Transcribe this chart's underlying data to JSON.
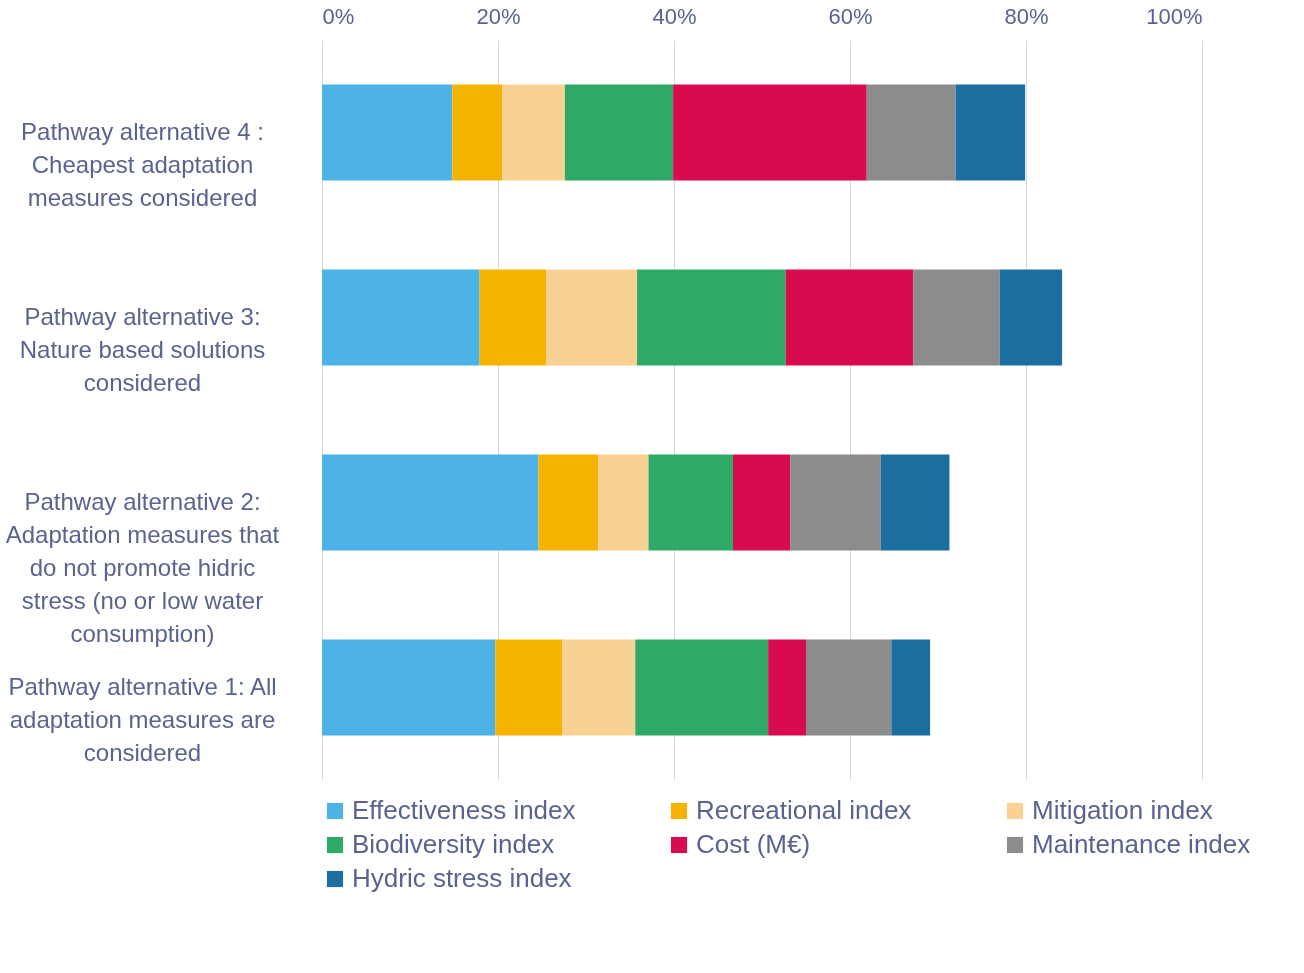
{
  "chart_data": {
    "type": "bar",
    "orientation": "horizontal",
    "stacked": true,
    "categories": [
      "Pathway alternative 4 : Cheapest adaptation measures considered",
      "Pathway alternative 3: Nature based solutions considered",
      "Pathway alternative 2: Adaptation measures that do not promote hidric stress (no or low water consumption)",
      "Pathway alternative 1: All adaptation measures are considered"
    ],
    "series": [
      {
        "name": "Effectiveness index",
        "color": "#4db3e6",
        "values": [
          14.8,
          17.9,
          24.6,
          19.7
        ]
      },
      {
        "name": "Recreational index",
        "color": "#f5b300",
        "values": [
          5.7,
          7.6,
          6.8,
          7.6
        ]
      },
      {
        "name": "Mitigation index",
        "color": "#f9d293",
        "values": [
          7.1,
          10.3,
          5.7,
          8.3
        ]
      },
      {
        "name": "Biodiversity index",
        "color": "#2eaa66",
        "values": [
          12.3,
          16.9,
          9.6,
          15.1
        ]
      },
      {
        "name": "Cost (M€)",
        "color": "#d90b4f",
        "values": [
          22.0,
          14.5,
          6.5,
          4.3
        ]
      },
      {
        "name": "Maintenance index",
        "color": "#8c8c8c",
        "values": [
          10.1,
          9.8,
          10.3,
          9.7
        ]
      },
      {
        "name": "Hydric stress index",
        "color": "#1a6fa0",
        "values": [
          7.9,
          7.1,
          7.8,
          4.4
        ]
      }
    ],
    "xlim": [
      0,
      100
    ],
    "xticks": [
      {
        "value": 0,
        "label": "0%"
      },
      {
        "value": 20,
        "label": "20%"
      },
      {
        "value": 40,
        "label": "40%"
      },
      {
        "value": 60,
        "label": "60%"
      },
      {
        "value": 80,
        "label": "80%"
      },
      {
        "value": 100,
        "label": "100%"
      }
    ],
    "grid": "x",
    "legend": "bottom"
  }
}
